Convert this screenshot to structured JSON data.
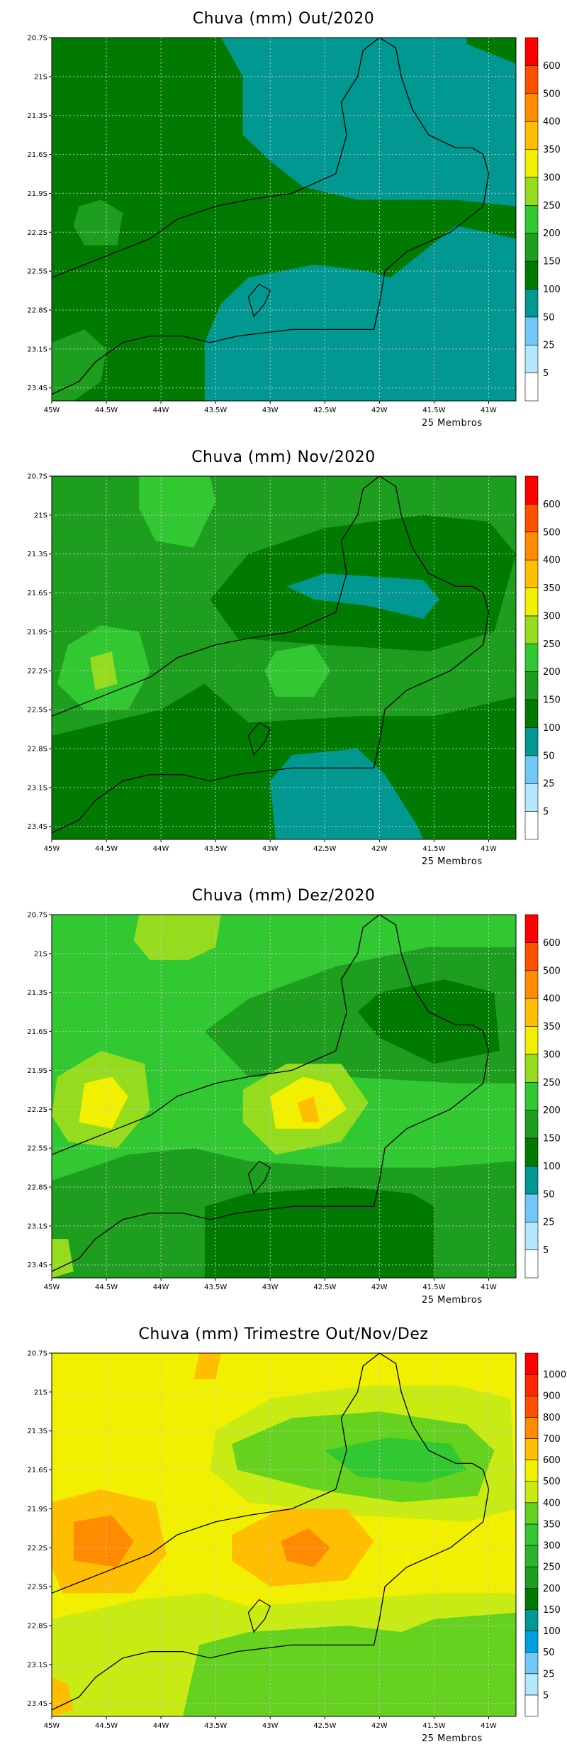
{
  "panels": [
    {
      "title": "Chuva (mm) Out/2020",
      "footer": "25 Membros",
      "legend": {
        "labels": [
          "5",
          "25",
          "50",
          "100",
          "150",
          "200",
          "250",
          "300",
          "350",
          "400",
          "500",
          "600"
        ]
      },
      "background_class": "100-150",
      "contours": [
        {
          "class": "50-100",
          "desc": "large eastern/northern teal region"
        },
        {
          "class": "50-100",
          "desc": "southern coastal teal region"
        },
        {
          "class": "150-200",
          "desc": "small patch near 44.6W 22.1S"
        },
        {
          "class": "150-200",
          "desc": "southwest corner patch"
        }
      ]
    },
    {
      "title": "Chuva (mm) Nov/2020",
      "footer": "25 Membros",
      "legend": {
        "labels": [
          "5",
          "25",
          "50",
          "100",
          "150",
          "200",
          "250",
          "300",
          "350",
          "400",
          "500",
          "600"
        ]
      },
      "background_class": "150-200",
      "contours": [
        {
          "class": "200-250",
          "desc": "north patch near 43.8W 21.0S"
        },
        {
          "class": "100-150",
          "desc": "north-east dark band"
        },
        {
          "class": "50-100",
          "desc": "teal pocket near 42.3W 21.6S"
        },
        {
          "class": "200-250",
          "desc": "west patch near 44.5W 22.2S"
        },
        {
          "class": "250-300",
          "desc": "small core near 44.5W 22.2S"
        },
        {
          "class": "200-250",
          "desc": "patch near 42.7W 22.2S"
        },
        {
          "class": "100-150",
          "desc": "southern dark band"
        },
        {
          "class": "50-100",
          "desc": "southern teal near 42.5W 23.2S"
        }
      ]
    },
    {
      "title": "Chuva (mm) Dez/2020",
      "footer": "25 Membros",
      "legend": {
        "labels": [
          "5",
          "25",
          "50",
          "100",
          "150",
          "200",
          "250",
          "300",
          "350",
          "400",
          "500",
          "600"
        ]
      },
      "background_class": "200-250",
      "contours": [
        {
          "class": "250-300",
          "desc": "north-central patch"
        },
        {
          "class": "150-200",
          "desc": "northeast band"
        },
        {
          "class": "100-150",
          "desc": "northeast dark core"
        },
        {
          "class": "250-300",
          "desc": "west ring near 44.5W 22.2S"
        },
        {
          "class": "300-350",
          "desc": "west core near 44.5W 22.2S"
        },
        {
          "class": "250-300",
          "desc": "central ring near 42.7W 22.3S"
        },
        {
          "class": "300-350",
          "desc": "central core near 42.7W 22.3S"
        },
        {
          "class": "350-400",
          "desc": "central max near 42.7W 22.3S"
        },
        {
          "class": "150-200",
          "desc": "south band"
        },
        {
          "class": "100-150",
          "desc": "south dark band near 43W 23.1S"
        },
        {
          "class": "250-300",
          "desc": "southwest corner patch"
        }
      ]
    },
    {
      "title": "Chuva (mm) Trimestre Out/Nov/Dez",
      "footer": "25 Membros",
      "legend": {
        "labels": [
          "5",
          "25",
          "50",
          "100",
          "150",
          "200",
          "250",
          "300",
          "350",
          "400",
          "500",
          "600",
          "700",
          "800",
          "900",
          "1000"
        ]
      },
      "background_class": "500-600",
      "contours": [
        {
          "class": "600-700",
          "desc": "north patch near 43.6W 20.8S"
        },
        {
          "class": "400-500",
          "desc": "northeast lime region"
        },
        {
          "class": "350-400",
          "desc": "northeast band"
        },
        {
          "class": "300-350",
          "desc": "northeast darker core"
        },
        {
          "class": "600-700",
          "desc": "west maximum near 44.5W 22.2S"
        },
        {
          "class": "700-800",
          "desc": "west core near 44.5W 22.2S"
        },
        {
          "class": "600-700",
          "desc": "central maximum near 42.7W 22.3S"
        },
        {
          "class": "700-800",
          "desc": "central core near 42.7W 22.3S"
        },
        {
          "class": "400-500",
          "desc": "southern lime region"
        },
        {
          "class": "350-400",
          "desc": "southern green region"
        },
        {
          "class": "600-700",
          "desc": "southwest corner patch"
        }
      ]
    }
  ],
  "axes": {
    "y_ticks": [
      "20.7S",
      "21S",
      "21.3S",
      "21.6S",
      "21.9S",
      "22.2S",
      "22.5S",
      "22.8S",
      "23.1S",
      "23.4S"
    ],
    "x_ticks": [
      "45W",
      "44.5W",
      "44W",
      "43.5W",
      "43W",
      "42.5W",
      "42W",
      "41.5W",
      "41W"
    ]
  },
  "colors": {
    "0-5": "#ffffff",
    "5-25": "#b4e8fa",
    "25-50": "#6fc8f5",
    "50-100": "#009890",
    "100-150": "#007a00",
    "150-200": "#1e9e1e",
    "200-250": "#32c832",
    "250-300": "#96dc1e",
    "300-350": "#f0f000",
    "350-400": "#ffbe00",
    "400-500": "#ff8c00",
    "500-600": "#ff5000",
    "600-700": "#ff0000",
    "q4": {
      "0-5": "#ffffff",
      "5-25": "#b4e8fa",
      "25-50": "#6fc8f5",
      "50-100": "#00a0e0",
      "100-150": "#009890",
      "150-200": "#007a00",
      "200-250": "#1e9e1e",
      "250-300": "#2db42d",
      "300-350": "#32c832",
      "350-400": "#64d21e",
      "400-500": "#c8eb14",
      "500-600": "#f0f000",
      "600-700": "#ffbe00",
      "700-800": "#ff8c00",
      "800-900": "#ff5000",
      "900-1000": "#ff2800",
      "1000+": "#ff0000"
    }
  }
}
